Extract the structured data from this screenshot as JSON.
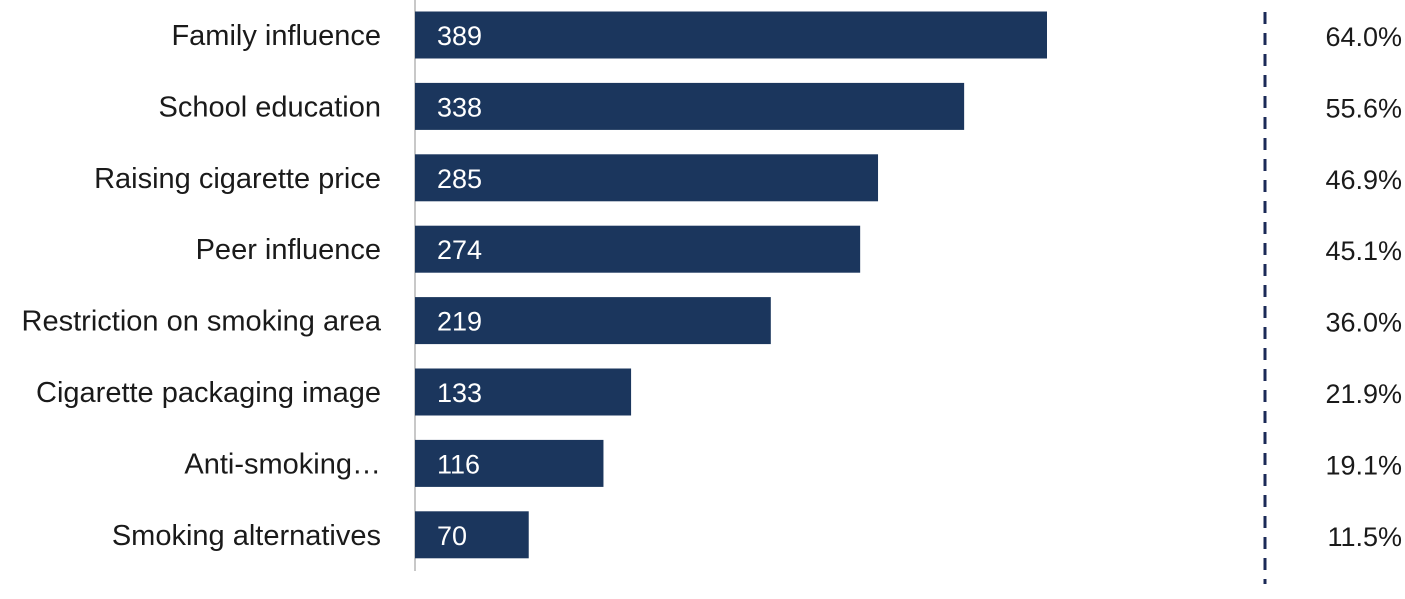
{
  "chart_data": {
    "type": "bar",
    "orientation": "horizontal",
    "categories": [
      "Family influence",
      "School education",
      "Raising cigarette price",
      "Peer influence",
      "Restriction on smoking area",
      "Cigarette packaging image",
      "Anti-smoking…",
      "Smoking alternatives"
    ],
    "values": [
      389,
      338,
      285,
      274,
      219,
      133,
      116,
      70
    ],
    "percentages": [
      "64.0%",
      "55.6%",
      "46.9%",
      "45.1%",
      "36.0%",
      "21.9%",
      "19.1%",
      "11.5%"
    ],
    "xlim": [
      0,
      400
    ],
    "grid": false,
    "legend": "none",
    "colors": {
      "bar": "#1b365d",
      "axis": "#c8c8c8",
      "divider": "#1b2a57",
      "label": "#1a1a1a",
      "value_text": "#ffffff"
    }
  }
}
